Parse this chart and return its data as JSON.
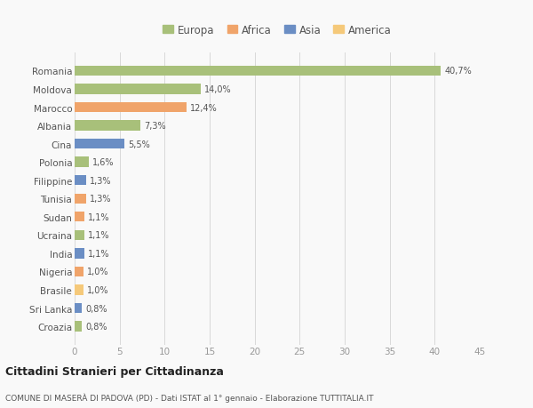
{
  "categories": [
    "Croazia",
    "Sri Lanka",
    "Brasile",
    "Nigeria",
    "India",
    "Ucraina",
    "Sudan",
    "Tunisia",
    "Filippine",
    "Polonia",
    "Cina",
    "Albania",
    "Marocco",
    "Moldova",
    "Romania"
  ],
  "values": [
    0.8,
    0.8,
    1.0,
    1.0,
    1.1,
    1.1,
    1.1,
    1.3,
    1.3,
    1.6,
    5.5,
    7.3,
    12.4,
    14.0,
    40.7
  ],
  "labels": [
    "0,8%",
    "0,8%",
    "1,0%",
    "1,0%",
    "1,1%",
    "1,1%",
    "1,1%",
    "1,3%",
    "1,3%",
    "1,6%",
    "5,5%",
    "7,3%",
    "12,4%",
    "14,0%",
    "40,7%"
  ],
  "colors": [
    "#a8c07a",
    "#6b8ec4",
    "#f5c97a",
    "#f0a46a",
    "#6b8ec4",
    "#a8c07a",
    "#f0a46a",
    "#f0a46a",
    "#6b8ec4",
    "#a8c07a",
    "#6b8ec4",
    "#a8c07a",
    "#f0a46a",
    "#a8c07a",
    "#a8c07a"
  ],
  "legend_labels": [
    "Europa",
    "Africa",
    "Asia",
    "America"
  ],
  "legend_colors": [
    "#a8c07a",
    "#f0a46a",
    "#6b8ec4",
    "#f5c97a"
  ],
  "title": "Cittadini Stranieri per Cittadinanza",
  "subtitle": "COMUNE DI MASERÀ DI PADOVA (PD) - Dati ISTAT al 1° gennaio - Elaborazione TUTTITALIA.IT",
  "xlim": [
    0,
    45
  ],
  "xticks": [
    0,
    5,
    10,
    15,
    20,
    25,
    30,
    35,
    40,
    45
  ],
  "background_color": "#f9f9f9",
  "grid_color": "#d8d8d8"
}
